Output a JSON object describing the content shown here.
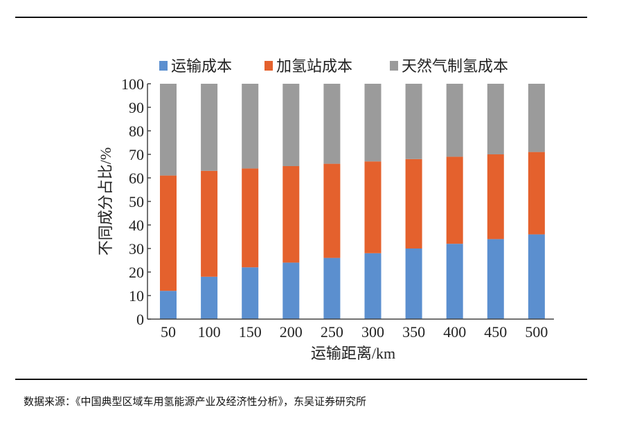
{
  "source_note": "数据来源：《中国典型区域车用氢能源产业及经济性分析》，东吴证券研究所",
  "chart_data": {
    "type": "bar",
    "stacked": true,
    "title": "",
    "xlabel": "运输距离/km",
    "ylabel": "不同成分占比/%",
    "ylim": [
      0,
      100
    ],
    "yticks": [
      0,
      10,
      20,
      30,
      40,
      50,
      60,
      70,
      80,
      90,
      100
    ],
    "categories": [
      "50",
      "100",
      "150",
      "200",
      "250",
      "300",
      "350",
      "400",
      "450",
      "500"
    ],
    "legend_position": "top",
    "grid": false,
    "series": [
      {
        "name": "运输成本",
        "color": "#5b8fcf",
        "values": [
          12,
          18,
          22,
          24,
          26,
          28,
          30,
          32,
          34,
          36
        ]
      },
      {
        "name": "加氢站成本",
        "color": "#e4612d",
        "values": [
          49,
          45,
          42,
          41,
          40,
          39,
          38,
          37,
          36,
          35
        ]
      },
      {
        "name": "天然气制氢成本",
        "color": "#9b9b9b",
        "values": [
          39,
          37,
          36,
          35,
          34,
          33,
          32,
          31,
          30,
          29
        ]
      }
    ]
  }
}
